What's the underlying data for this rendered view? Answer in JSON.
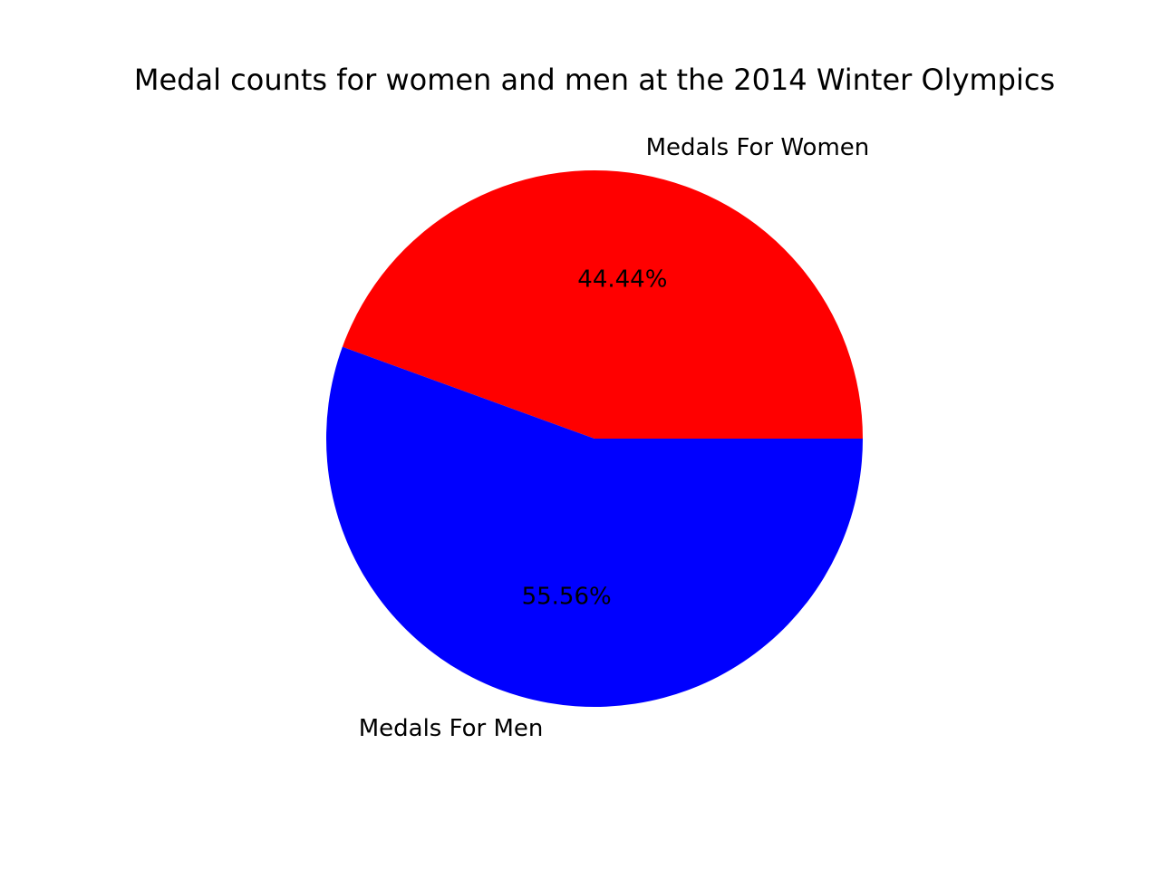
{
  "chart_data": {
    "type": "pie",
    "title": "Medal counts for women and men at the 2014 Winter Olympics",
    "slices": [
      {
        "label": "Medals For Women",
        "value": 44.44,
        "pct_label": "44.44%",
        "color": "#ff0000"
      },
      {
        "label": "Medals For Men",
        "value": 55.56,
        "pct_label": "55.56%",
        "color": "#0000ff"
      }
    ],
    "start_angle_deg": 0,
    "direction": "counterclockwise",
    "legend": "none"
  }
}
